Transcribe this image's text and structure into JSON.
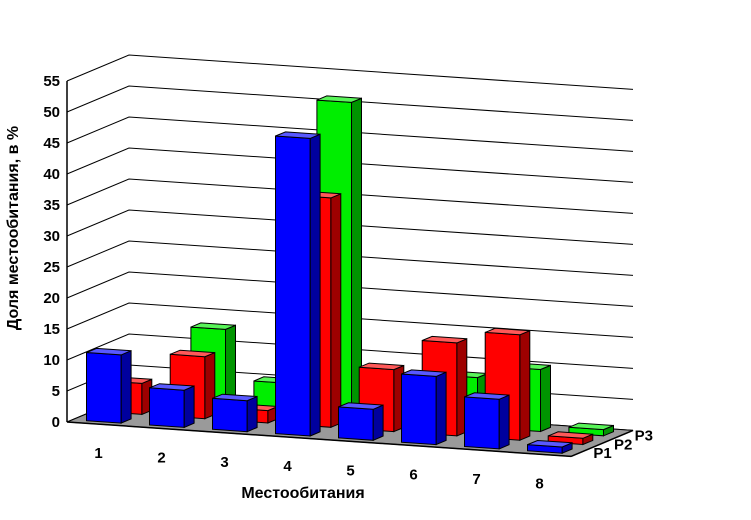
{
  "chart_data": {
    "type": "bar",
    "subtype": "3d-clustered",
    "title": "",
    "xlabel": "Местообитания",
    "ylabel": "Доля местообитания, в %",
    "ylim": [
      0,
      55
    ],
    "yticks": [
      0,
      5,
      10,
      15,
      20,
      25,
      30,
      35,
      40,
      45,
      50,
      55
    ],
    "grid": true,
    "categories": [
      "1",
      "2",
      "3",
      "4",
      "5",
      "6",
      "7",
      "8"
    ],
    "series": [
      {
        "name": "P1",
        "color": "#0000ff",
        "values": [
          11,
          6,
          5,
          48,
          5,
          11,
          8,
          1
        ]
      },
      {
        "name": "P2",
        "color": "#ff0000",
        "values": [
          5,
          10,
          2,
          37,
          10,
          15,
          17,
          1
        ]
      },
      {
        "name": "P3",
        "color": "#00ee00",
        "values": [
          1,
          13,
          5,
          51,
          1,
          8,
          10,
          1
        ]
      }
    ],
    "depth_labels": [
      "P1",
      "P2",
      "P3"
    ],
    "floor_color": "#9a9a9a"
  }
}
